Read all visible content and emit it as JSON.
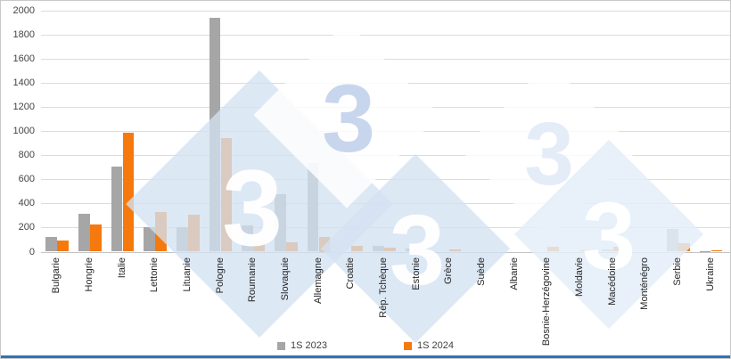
{
  "legend": {
    "items": [
      {
        "label": "1S 2023",
        "color": "#a6a6a6"
      },
      {
        "label": "1S 2024",
        "color": "#f5790d"
      }
    ]
  },
  "watermark": {
    "glyph": "3",
    "diamond_fill": "rgba(212,225,242,0.78)",
    "diamond_fill_faint": "rgba(228,237,248,0.85)",
    "white_fill": "rgba(255,255,255,0.82)",
    "glyph_white": "rgba(255,255,255,0.95)",
    "glyph_blue": "#c7d6ec",
    "glyph_faint": "#e4ecf7"
  },
  "footer_bar_color": "#2e74b6",
  "chart_data": {
    "type": "bar",
    "title": "",
    "xlabel": "",
    "ylabel": "",
    "categories": [
      "Bulgarie",
      "Hongrie",
      "Italie",
      "Lettonie",
      "Lituanie",
      "Pologne",
      "Roumanie",
      "Slovaquie",
      "Allemagne",
      "Croatie",
      "Rép. Tchèque",
      "Estonie",
      "Grèce",
      "Suède",
      "Albanie",
      "Bosnie-Herzégovine",
      "Moldavie",
      "Macédoine",
      "Monténégro",
      "Serbie",
      "Ukraine"
    ],
    "series": [
      {
        "name": "1S 2023",
        "color": "#a6a6a6",
        "values": [
          120,
          315,
          705,
          200,
          200,
          1940,
          215,
          475,
          735,
          0,
          50,
          25,
          0,
          0,
          0,
          0,
          0,
          15,
          0,
          185,
          5
        ]
      },
      {
        "name": "1S 2024",
        "color": "#f5790d",
        "values": [
          90,
          225,
          985,
          330,
          305,
          945,
          95,
          80,
          125,
          45,
          35,
          10,
          20,
          0,
          0,
          40,
          8,
          38,
          0,
          70,
          12
        ]
      }
    ],
    "ylim": [
      0,
      2000
    ],
    "ytick_step": 200,
    "grid": true,
    "legend_position": "bottom"
  }
}
